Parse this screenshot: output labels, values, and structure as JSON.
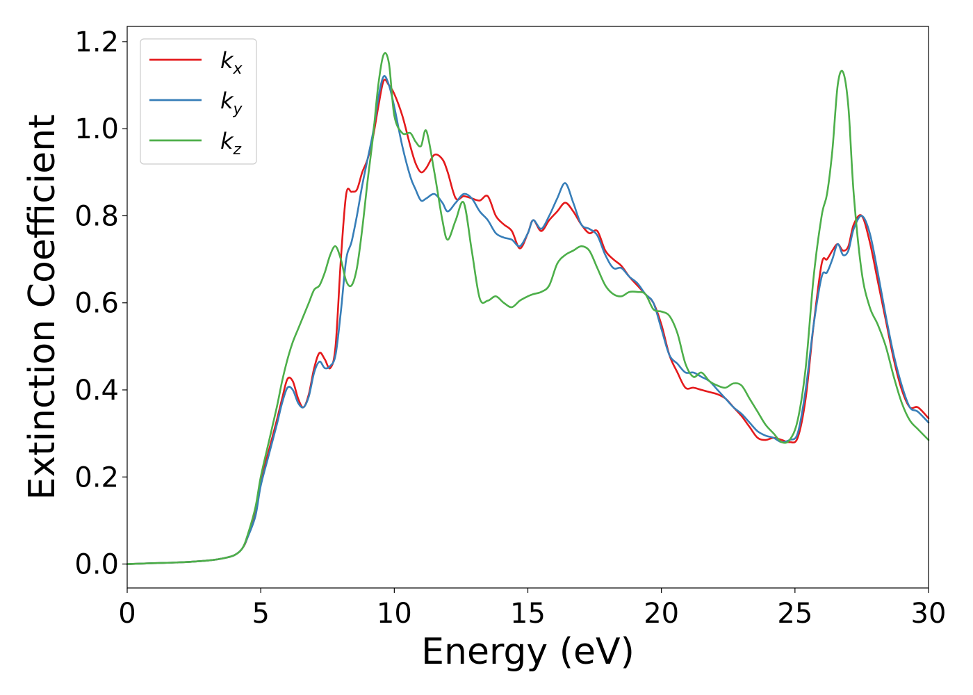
{
  "chart_data": {
    "type": "line",
    "xlabel": "Energy (eV)",
    "ylabel": "Extinction Coefficient",
    "xlim": [
      0,
      30
    ],
    "ylim": [
      -0.055,
      1.235
    ],
    "xticks": [
      0,
      5,
      10,
      15,
      20,
      25,
      30
    ],
    "xtick_labels": [
      "0",
      "5",
      "10",
      "15",
      "20",
      "25",
      "30"
    ],
    "yticks": [
      0.0,
      0.2,
      0.4,
      0.6,
      0.8,
      1.0,
      1.2
    ],
    "ytick_labels": [
      "0.0",
      "0.2",
      "0.4",
      "0.6",
      "0.8",
      "1.0",
      "1.2"
    ],
    "grid": false,
    "legend_position": "top-left",
    "series": [
      {
        "name": "k_x",
        "label_base": "k",
        "label_sub": "x",
        "color": "#e41a1c",
        "x": [
          0,
          1,
          2,
          3,
          3.5,
          4,
          4.3,
          4.5,
          4.8,
          5,
          5.3,
          5.6,
          5.8,
          6,
          6.2,
          6.4,
          6.6,
          6.8,
          7,
          7.2,
          7.4,
          7.6,
          7.8,
          8,
          8.2,
          8.4,
          8.6,
          8.8,
          9,
          9.2,
          9.4,
          9.6,
          9.8,
          10,
          10.3,
          10.6,
          10.8,
          11,
          11.2,
          11.5,
          11.8,
          12,
          12.3,
          12.6,
          12.9,
          13.2,
          13.5,
          13.8,
          14.1,
          14.4,
          14.7,
          15,
          15.2,
          15.5,
          15.8,
          16.1,
          16.4,
          16.7,
          17,
          17.3,
          17.6,
          17.9,
          18.2,
          18.5,
          18.8,
          19.1,
          19.4,
          19.7,
          20,
          20.3,
          20.6,
          20.9,
          21.2,
          21.5,
          21.8,
          22.1,
          22.4,
          22.7,
          23,
          23.3,
          23.6,
          23.9,
          24.2,
          24.5,
          24.8,
          25.1,
          25.4,
          25.7,
          26,
          26.2,
          26.4,
          26.6,
          26.8,
          27,
          27.2,
          27.5,
          27.8,
          28.1,
          28.4,
          28.7,
          29,
          29.3,
          29.6,
          30
        ],
        "values": [
          0,
          0.002,
          0.004,
          0.008,
          0.012,
          0.02,
          0.035,
          0.06,
          0.12,
          0.19,
          0.26,
          0.33,
          0.38,
          0.425,
          0.42,
          0.38,
          0.36,
          0.39,
          0.45,
          0.485,
          0.47,
          0.45,
          0.5,
          0.7,
          0.85,
          0.855,
          0.86,
          0.9,
          0.93,
          0.98,
          1.05,
          1.11,
          1.1,
          1.08,
          1.03,
          0.96,
          0.92,
          0.9,
          0.91,
          0.94,
          0.93,
          0.9,
          0.84,
          0.845,
          0.84,
          0.835,
          0.845,
          0.8,
          0.78,
          0.765,
          0.725,
          0.76,
          0.79,
          0.765,
          0.79,
          0.81,
          0.83,
          0.81,
          0.78,
          0.76,
          0.765,
          0.72,
          0.7,
          0.685,
          0.66,
          0.64,
          0.62,
          0.6,
          0.55,
          0.48,
          0.44,
          0.405,
          0.405,
          0.4,
          0.395,
          0.39,
          0.38,
          0.36,
          0.34,
          0.315,
          0.29,
          0.285,
          0.29,
          0.285,
          0.28,
          0.29,
          0.38,
          0.55,
          0.69,
          0.7,
          0.72,
          0.735,
          0.72,
          0.73,
          0.78,
          0.8,
          0.74,
          0.65,
          0.56,
          0.47,
          0.4,
          0.36,
          0.36,
          0.335
        ]
      },
      {
        "name": "k_y",
        "label_base": "k",
        "label_sub": "y",
        "color": "#377eb8",
        "x": [
          0,
          1,
          2,
          3,
          3.5,
          4,
          4.3,
          4.5,
          4.8,
          5,
          5.3,
          5.6,
          5.8,
          6,
          6.2,
          6.4,
          6.6,
          6.8,
          7,
          7.2,
          7.4,
          7.6,
          7.8,
          8,
          8.2,
          8.4,
          8.6,
          8.8,
          9,
          9.2,
          9.4,
          9.6,
          9.8,
          10,
          10.3,
          10.6,
          10.8,
          11,
          11.2,
          11.5,
          11.8,
          12,
          12.3,
          12.6,
          12.9,
          13.2,
          13.5,
          13.8,
          14.1,
          14.4,
          14.7,
          15,
          15.2,
          15.5,
          15.8,
          16.1,
          16.4,
          16.7,
          17,
          17.3,
          17.6,
          17.9,
          18.2,
          18.5,
          18.8,
          19.1,
          19.4,
          19.7,
          20,
          20.3,
          20.6,
          20.9,
          21.2,
          21.5,
          21.8,
          22.1,
          22.4,
          22.7,
          23,
          23.3,
          23.6,
          23.9,
          24.2,
          24.5,
          24.8,
          25.1,
          25.4,
          25.7,
          26,
          26.2,
          26.4,
          26.6,
          26.8,
          27,
          27.2,
          27.5,
          27.8,
          28.1,
          28.4,
          28.7,
          29,
          29.3,
          29.6,
          30
        ],
        "values": [
          0,
          0.002,
          0.004,
          0.008,
          0.012,
          0.02,
          0.035,
          0.06,
          0.11,
          0.18,
          0.25,
          0.32,
          0.37,
          0.405,
          0.4,
          0.37,
          0.36,
          0.385,
          0.44,
          0.465,
          0.45,
          0.455,
          0.48,
          0.58,
          0.7,
          0.74,
          0.8,
          0.87,
          0.93,
          0.99,
          1.07,
          1.12,
          1.1,
          1.05,
          0.96,
          0.89,
          0.86,
          0.835,
          0.84,
          0.85,
          0.83,
          0.81,
          0.83,
          0.85,
          0.84,
          0.81,
          0.79,
          0.76,
          0.75,
          0.745,
          0.73,
          0.76,
          0.79,
          0.77,
          0.8,
          0.84,
          0.875,
          0.83,
          0.78,
          0.77,
          0.755,
          0.71,
          0.68,
          0.68,
          0.66,
          0.645,
          0.62,
          0.6,
          0.54,
          0.48,
          0.46,
          0.44,
          0.44,
          0.43,
          0.42,
          0.4,
          0.38,
          0.36,
          0.345,
          0.325,
          0.305,
          0.295,
          0.29,
          0.28,
          0.285,
          0.3,
          0.4,
          0.55,
          0.66,
          0.67,
          0.7,
          0.735,
          0.71,
          0.72,
          0.77,
          0.8,
          0.76,
          0.67,
          0.57,
          0.48,
          0.41,
          0.36,
          0.35,
          0.325
        ]
      },
      {
        "name": "k_z",
        "label_base": "k",
        "label_sub": "z",
        "color": "#4daf4a",
        "x": [
          0,
          1,
          2,
          3,
          3.5,
          4,
          4.3,
          4.5,
          4.8,
          5,
          5.3,
          5.6,
          5.8,
          6,
          6.2,
          6.4,
          6.6,
          6.8,
          7,
          7.2,
          7.4,
          7.6,
          7.8,
          8,
          8.2,
          8.4,
          8.6,
          8.8,
          9,
          9.2,
          9.4,
          9.6,
          9.8,
          10,
          10.3,
          10.6,
          10.8,
          11,
          11.2,
          11.5,
          11.8,
          12,
          12.3,
          12.6,
          12.9,
          13.2,
          13.5,
          13.8,
          14.1,
          14.4,
          14.7,
          15,
          15.2,
          15.5,
          15.8,
          16.1,
          16.4,
          16.7,
          17,
          17.3,
          17.6,
          17.9,
          18.2,
          18.5,
          18.8,
          19.1,
          19.4,
          19.7,
          20,
          20.3,
          20.6,
          20.9,
          21.2,
          21.5,
          21.8,
          22.1,
          22.4,
          22.7,
          23,
          23.3,
          23.6,
          23.9,
          24.2,
          24.5,
          24.8,
          25.1,
          25.4,
          25.7,
          26,
          26.2,
          26.4,
          26.6,
          26.8,
          27,
          27.2,
          27.5,
          27.8,
          28.1,
          28.4,
          28.7,
          29,
          29.3,
          29.6,
          30
        ],
        "values": [
          0,
          0.002,
          0.004,
          0.008,
          0.012,
          0.02,
          0.035,
          0.065,
          0.13,
          0.2,
          0.28,
          0.36,
          0.42,
          0.47,
          0.51,
          0.54,
          0.57,
          0.6,
          0.63,
          0.64,
          0.67,
          0.71,
          0.73,
          0.7,
          0.65,
          0.64,
          0.68,
          0.77,
          0.88,
          0.98,
          1.1,
          1.17,
          1.15,
          1.03,
          0.99,
          0.99,
          0.97,
          0.96,
          0.995,
          0.9,
          0.79,
          0.745,
          0.79,
          0.83,
          0.72,
          0.61,
          0.605,
          0.615,
          0.6,
          0.59,
          0.605,
          0.615,
          0.62,
          0.625,
          0.64,
          0.69,
          0.71,
          0.72,
          0.73,
          0.72,
          0.68,
          0.64,
          0.62,
          0.615,
          0.625,
          0.625,
          0.62,
          0.585,
          0.58,
          0.57,
          0.53,
          0.46,
          0.43,
          0.44,
          0.42,
          0.41,
          0.405,
          0.415,
          0.41,
          0.38,
          0.35,
          0.32,
          0.3,
          0.28,
          0.285,
          0.33,
          0.45,
          0.66,
          0.8,
          0.85,
          0.95,
          1.1,
          1.13,
          1.05,
          0.85,
          0.67,
          0.59,
          0.55,
          0.5,
          0.43,
          0.37,
          0.33,
          0.31,
          0.285
        ]
      }
    ]
  }
}
